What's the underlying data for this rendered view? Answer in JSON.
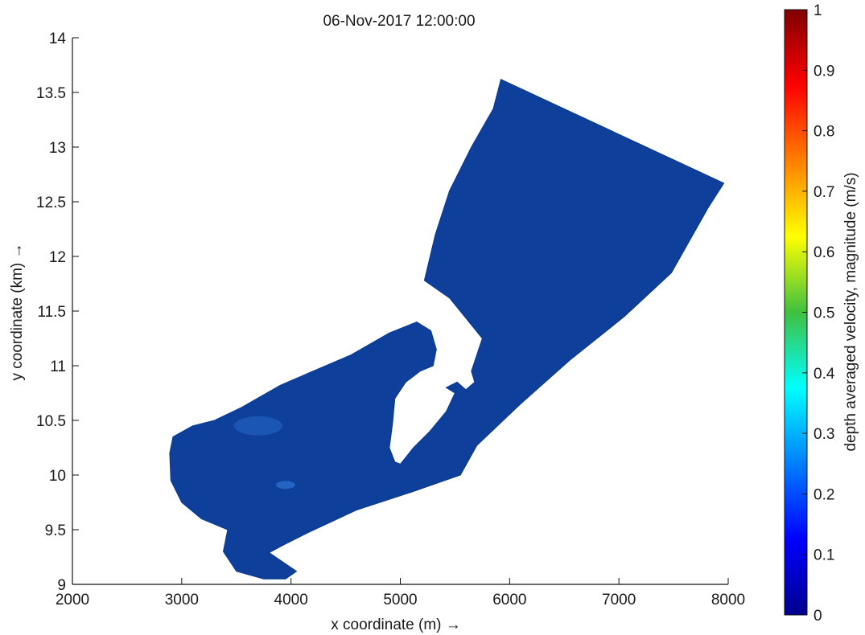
{
  "chart_data": {
    "type": "heatmap",
    "title": "06-Nov-2017 12:00:00",
    "xlabel": "x coordinate (m) →",
    "ylabel": "y coordinate (km) →",
    "xlim": [
      2000,
      8000
    ],
    "ylim": [
      9,
      14
    ],
    "x_ticks": [
      2000,
      3000,
      4000,
      5000,
      6000,
      7000,
      8000
    ],
    "y_ticks": [
      9,
      9.5,
      10,
      10.5,
      11,
      11.5,
      12,
      12.5,
      13,
      13.5,
      14
    ],
    "colorbar": {
      "label": "depth averaged velocity, magnitude (m/s)",
      "range": [
        0,
        1
      ],
      "ticks": [
        0,
        0.1,
        0.2,
        0.3,
        0.4,
        0.5,
        0.6,
        0.7,
        0.8,
        0.9,
        1
      ],
      "colormap": "jet"
    },
    "fill_color": "#0e3f9a",
    "highlight_color": "#2f73d6",
    "domain_outline": [
      [
        5920,
        13.62
      ],
      [
        7960,
        12.67
      ],
      [
        7820,
        12.45
      ],
      [
        7480,
        11.85
      ],
      [
        7050,
        11.45
      ],
      [
        6550,
        11.05
      ],
      [
        6100,
        10.65
      ],
      [
        5700,
        10.27
      ],
      [
        5550,
        10.0
      ],
      [
        5120,
        9.85
      ],
      [
        4600,
        9.68
      ],
      [
        4150,
        9.47
      ],
      [
        3950,
        9.37
      ],
      [
        3800,
        9.29
      ],
      [
        4050,
        9.12
      ],
      [
        3950,
        9.05
      ],
      [
        3750,
        9.05
      ],
      [
        3500,
        9.12
      ],
      [
        3380,
        9.3
      ],
      [
        3420,
        9.5
      ],
      [
        3180,
        9.6
      ],
      [
        3000,
        9.75
      ],
      [
        2900,
        9.95
      ],
      [
        2890,
        10.2
      ],
      [
        2920,
        10.35
      ],
      [
        3100,
        10.45
      ],
      [
        3300,
        10.5
      ],
      [
        3550,
        10.62
      ],
      [
        3900,
        10.82
      ],
      [
        4200,
        10.95
      ],
      [
        4550,
        11.1
      ],
      [
        4900,
        11.3
      ],
      [
        5150,
        11.4
      ],
      [
        5280,
        11.32
      ],
      [
        5330,
        11.15
      ],
      [
        5300,
        11.0
      ],
      [
        5180,
        10.95
      ],
      [
        5050,
        10.85
      ],
      [
        4950,
        10.7
      ],
      [
        4930,
        10.48
      ],
      [
        4900,
        10.25
      ],
      [
        4950,
        10.12
      ],
      [
        5000,
        10.1
      ],
      [
        5120,
        10.25
      ],
      [
        5270,
        10.4
      ],
      [
        5420,
        10.58
      ],
      [
        5500,
        10.75
      ],
      [
        5420,
        10.8
      ],
      [
        5520,
        10.85
      ],
      [
        5600,
        10.78
      ],
      [
        5680,
        10.85
      ],
      [
        5650,
        10.95
      ],
      [
        5750,
        11.25
      ],
      [
        5450,
        11.62
      ],
      [
        5220,
        11.78
      ],
      [
        5320,
        12.2
      ],
      [
        5450,
        12.6
      ],
      [
        5650,
        13.0
      ],
      [
        5850,
        13.35
      ]
    ]
  }
}
